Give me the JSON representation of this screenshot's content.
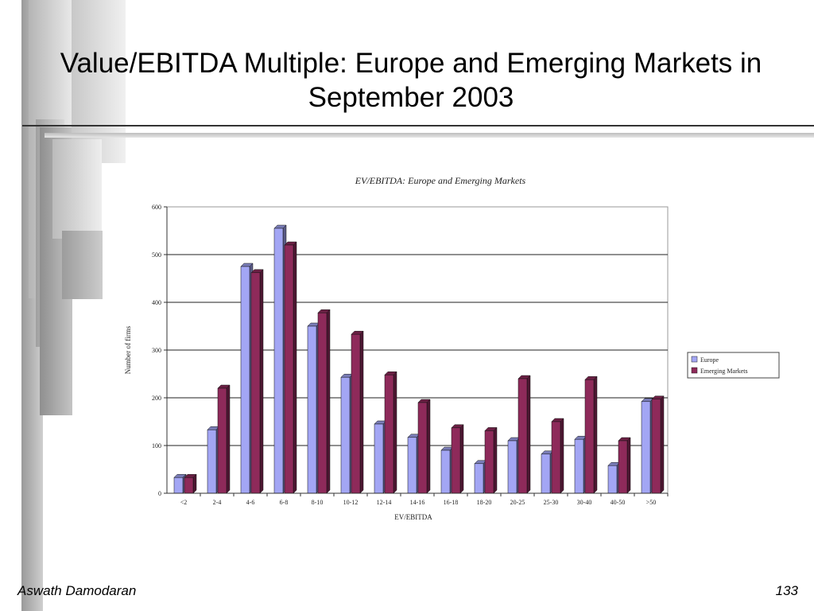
{
  "slide": {
    "title": "Value/EBITDA Multiple: Europe and Emerging Markets in September 2003",
    "author": "Aswath Damodaran",
    "page_number": "133"
  },
  "colors": {
    "europe": "#a3a6f4",
    "emerging": "#8e2a5a",
    "deco_gray_dark": "#a9a9a9",
    "deco_gray_light": "#e4e4e4"
  },
  "chart_data": {
    "type": "bar",
    "title": "EV/EBITDA: Europe and Emerging Markets",
    "xlabel": "EV/EBITDA",
    "ylabel": "Number of firms",
    "ylim": [
      0,
      600
    ],
    "yticks": [
      0,
      100,
      200,
      300,
      400,
      500,
      600
    ],
    "grid": true,
    "legend_position": "right",
    "categories": [
      "<2",
      "2-4",
      "4-6",
      "6-8",
      "8-10",
      "10-12",
      "12-14",
      "14-16",
      "16-18",
      "18-20",
      "20-25",
      "25-30",
      "30-40",
      "40-50",
      ">50"
    ],
    "series": [
      {
        "name": "Europe",
        "values": [
          33,
          133,
          475,
          555,
          350,
          243,
          145,
          117,
          90,
          62,
          110,
          82,
          113,
          58,
          192
        ]
      },
      {
        "name": "Emerging Markets",
        "values": [
          33,
          220,
          462,
          520,
          378,
          333,
          248,
          190,
          137,
          131,
          240,
          150,
          238,
          110,
          197
        ]
      }
    ]
  }
}
